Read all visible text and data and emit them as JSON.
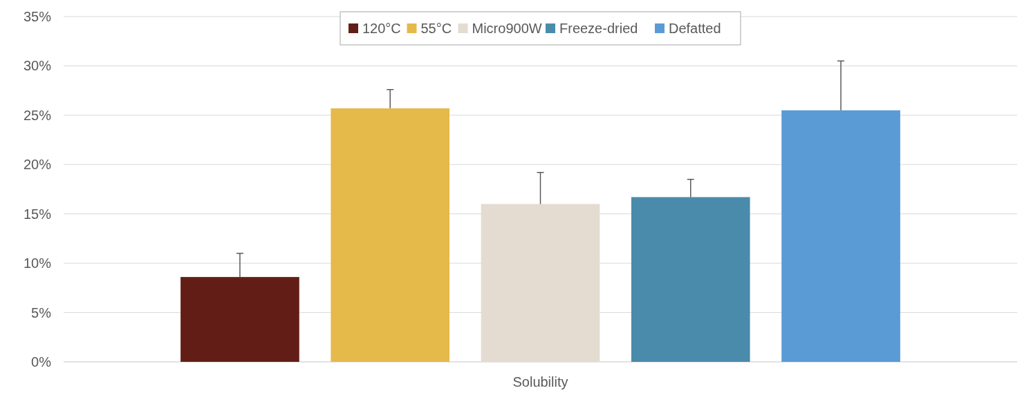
{
  "chart_data": {
    "type": "bar",
    "categories": [
      "Solubility"
    ],
    "series": [
      {
        "name": "120°C",
        "color": "#621e16",
        "values": [
          8.6
        ],
        "errors": [
          [
            8.6,
            11.0
          ]
        ]
      },
      {
        "name": "55°C",
        "color": "#e6b94b",
        "values": [
          25.7
        ],
        "errors": [
          [
            25.7,
            27.6
          ]
        ]
      },
      {
        "name": "Micro900W",
        "color": "#e4dbd1",
        "values": [
          16.0
        ],
        "errors": [
          [
            16.0,
            19.2
          ]
        ]
      },
      {
        "name": "Freeze-dried",
        "color": "#4a8bab",
        "values": [
          16.7
        ],
        "errors": [
          [
            16.7,
            18.5
          ]
        ]
      },
      {
        "name": "Defatted",
        "color": "#5a9bd6",
        "values": [
          25.5
        ],
        "errors": [
          [
            25.5,
            30.5
          ]
        ]
      }
    ],
    "ylim": [
      0,
      35
    ],
    "yticks": [
      {
        "value": 0,
        "label": "0%"
      },
      {
        "value": 5,
        "label": "5%"
      },
      {
        "value": 10,
        "label": "10%"
      },
      {
        "value": 15,
        "label": "15%"
      },
      {
        "value": 20,
        "label": "20%"
      },
      {
        "value": 25,
        "label": "25%"
      },
      {
        "value": 30,
        "label": "30%"
      },
      {
        "value": 35,
        "label": "35%"
      }
    ],
    "grid": "y",
    "legend": "top"
  }
}
